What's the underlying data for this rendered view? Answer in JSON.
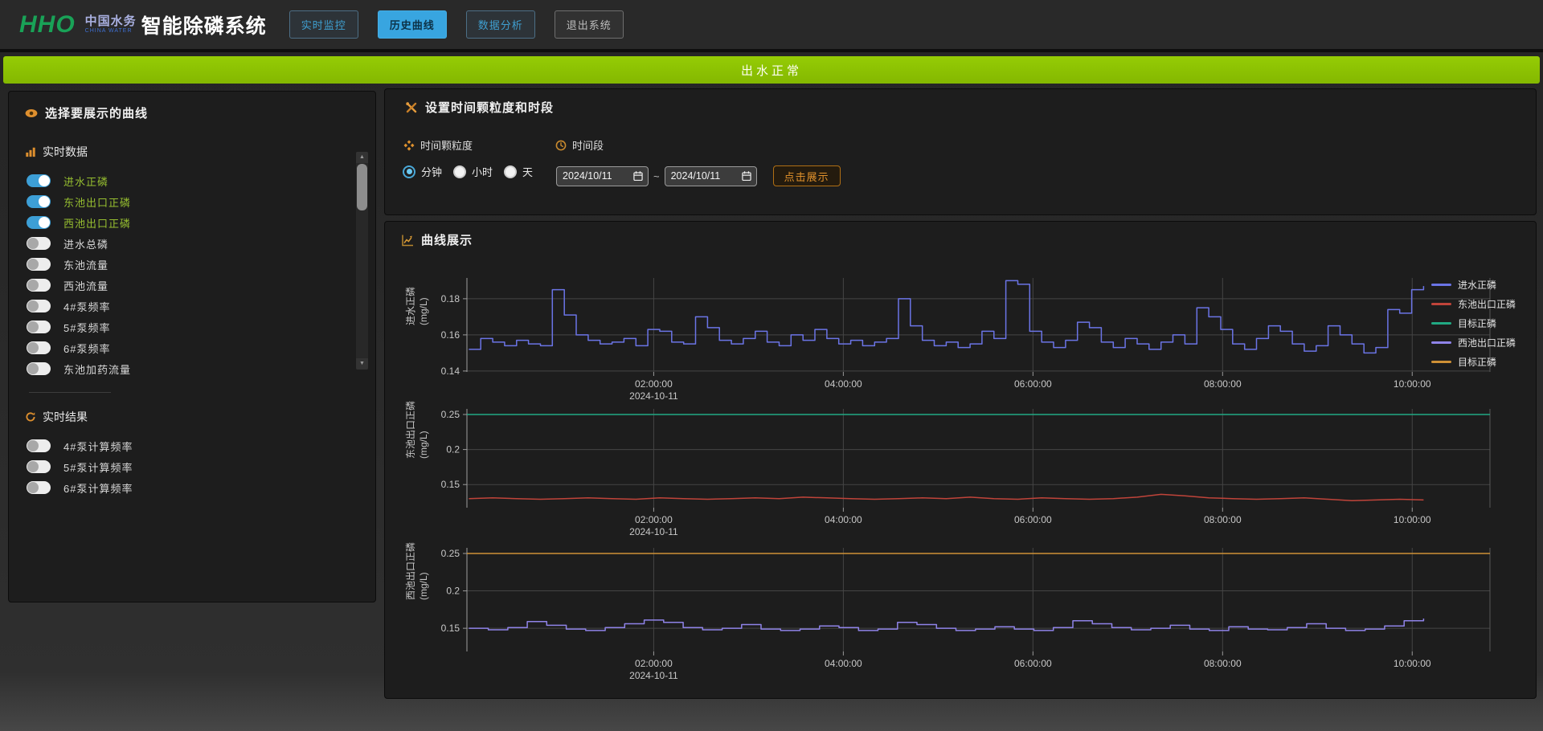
{
  "header": {
    "logo_mark": "HHO",
    "logo_cn": "中国水务",
    "logo_en": "CHINA WATER",
    "app_title": "智能除磷系统",
    "nav": [
      {
        "id": "realtime-monitor",
        "label": "实时监控",
        "style": "outline-blue"
      },
      {
        "id": "history-curves",
        "label": "历史曲线",
        "style": "active"
      },
      {
        "id": "data-analysis",
        "label": "数据分析",
        "style": "outline-blue"
      },
      {
        "id": "exit-system",
        "label": "退出系统",
        "style": "outline-gray"
      }
    ]
  },
  "banner": {
    "text": "出水正常",
    "color": "#8cc400"
  },
  "sidebar": {
    "title": "选择要展示的曲线",
    "groups": [
      {
        "title": "实时数据",
        "icon": "bar-chart-icon",
        "items": [
          {
            "label": "进水正磷",
            "on": true
          },
          {
            "label": "东池出口正磷",
            "on": true
          },
          {
            "label": "西池出口正磷",
            "on": true
          },
          {
            "label": "进水总磷",
            "on": false
          },
          {
            "label": "东池流量",
            "on": false
          },
          {
            "label": "西池流量",
            "on": false
          },
          {
            "label": "4#泵频率",
            "on": false
          },
          {
            "label": "5#泵频率",
            "on": false
          },
          {
            "label": "6#泵频率",
            "on": false
          },
          {
            "label": "东池加药流量",
            "on": false
          }
        ]
      },
      {
        "title": "实时结果",
        "icon": "refresh-icon",
        "items": [
          {
            "label": "4#泵计算频率",
            "on": false
          },
          {
            "label": "5#泵计算频率",
            "on": false
          },
          {
            "label": "6#泵计算频率",
            "on": false
          }
        ]
      }
    ]
  },
  "settings": {
    "title": "设置时间颗粒度和时段",
    "granularity": {
      "label": "时间颗粒度",
      "options": [
        {
          "label": "分钟",
          "selected": true
        },
        {
          "label": "小时",
          "selected": false
        },
        {
          "label": "天",
          "selected": false
        }
      ]
    },
    "period": {
      "label": "时间段",
      "start": "2024/10/11",
      "end": "2024/10/11",
      "separator": "~",
      "show_button": "点击展示"
    }
  },
  "charts_panel": {
    "title": "曲线展示",
    "legend": [
      {
        "label": "进水正磷",
        "color": "#6b74e6"
      },
      {
        "label": "东池出口正磷",
        "color": "#c0443a"
      },
      {
        "label": "目标正磷",
        "color": "#21a983"
      },
      {
        "label": "西池出口正磷",
        "color": "#8f83e8"
      },
      {
        "label": "目标正磷",
        "color": "#cf9136"
      }
    ]
  },
  "chart_data": [
    {
      "type": "line",
      "ylabel": "进水正磷",
      "yunit": "(mg/L)",
      "ylim": [
        0.1395,
        0.1915
      ],
      "yticks": [
        0.14,
        0.16,
        0.18
      ],
      "xlim_hours": [
        0.03,
        10.82
      ],
      "xticks": [
        {
          "hour": 2,
          "label": "02:00:00",
          "date": "2024-10-11"
        },
        {
          "hour": 4,
          "label": "04:00:00"
        },
        {
          "hour": 6,
          "label": "06:00:00"
        },
        {
          "hour": 8,
          "label": "08:00:00"
        },
        {
          "hour": 10,
          "label": "10:00:00"
        }
      ],
      "series": [
        {
          "name": "进水正磷",
          "color": "#6b74e6",
          "step": true,
          "x_start": 0.05,
          "x_end": 10.12,
          "values": [
            0.152,
            0.158,
            0.156,
            0.154,
            0.157,
            0.155,
            0.154,
            0.185,
            0.171,
            0.16,
            0.157,
            0.155,
            0.156,
            0.158,
            0.154,
            0.163,
            0.162,
            0.156,
            0.155,
            0.17,
            0.164,
            0.157,
            0.155,
            0.158,
            0.162,
            0.156,
            0.154,
            0.16,
            0.157,
            0.163,
            0.158,
            0.155,
            0.157,
            0.154,
            0.156,
            0.158,
            0.18,
            0.165,
            0.157,
            0.154,
            0.156,
            0.153,
            0.155,
            0.162,
            0.158,
            0.19,
            0.188,
            0.162,
            0.156,
            0.153,
            0.157,
            0.167,
            0.164,
            0.156,
            0.153,
            0.158,
            0.155,
            0.152,
            0.156,
            0.16,
            0.155,
            0.175,
            0.17,
            0.163,
            0.155,
            0.152,
            0.158,
            0.165,
            0.162,
            0.155,
            0.151,
            0.154,
            0.165,
            0.16,
            0.155,
            0.15,
            0.153,
            0.174,
            0.172,
            0.185,
            0.187
          ]
        }
      ]
    },
    {
      "type": "line",
      "ylabel": "东池出口正磷",
      "yunit": "(mg/L)",
      "ylim": [
        0.117,
        0.258
      ],
      "yticks": [
        0.15,
        0.2,
        0.25
      ],
      "xlim_hours": [
        0.03,
        10.82
      ],
      "xticks": [
        {
          "hour": 2,
          "label": "02:00:00",
          "date": "2024-10-11"
        },
        {
          "hour": 4,
          "label": "04:00:00"
        },
        {
          "hour": 6,
          "label": "06:00:00"
        },
        {
          "hour": 8,
          "label": "08:00:00"
        },
        {
          "hour": 10,
          "label": "10:00:00"
        }
      ],
      "series": [
        {
          "name": "目标正磷",
          "color": "#21a983",
          "step": false,
          "x_start": 0.03,
          "x_end": 10.82,
          "values": [
            0.25,
            0.25
          ]
        },
        {
          "name": "东池出口正磷",
          "color": "#c0443a",
          "step": false,
          "x_start": 0.05,
          "x_end": 10.12,
          "values": [
            0.13,
            0.131,
            0.13,
            0.129,
            0.13,
            0.131,
            0.13,
            0.129,
            0.131,
            0.13,
            0.129,
            0.13,
            0.131,
            0.13,
            0.132,
            0.131,
            0.13,
            0.129,
            0.13,
            0.131,
            0.13,
            0.132,
            0.13,
            0.129,
            0.131,
            0.13,
            0.129,
            0.13,
            0.132,
            0.136,
            0.134,
            0.131,
            0.13,
            0.129,
            0.13,
            0.131,
            0.129,
            0.127,
            0.128,
            0.129,
            0.128
          ]
        }
      ]
    },
    {
      "type": "line",
      "ylabel": "西池出口正磷",
      "yunit": "(mg/L)",
      "ylim": [
        0.119,
        0.2575
      ],
      "yticks": [
        0.15,
        0.2,
        0.25
      ],
      "xlim_hours": [
        0.03,
        10.82
      ],
      "xticks": [
        {
          "hour": 2,
          "label": "02:00:00",
          "date": "2024-10-11"
        },
        {
          "hour": 4,
          "label": "04:00:00"
        },
        {
          "hour": 6,
          "label": "06:00:00"
        },
        {
          "hour": 8,
          "label": "08:00:00"
        },
        {
          "hour": 10,
          "label": "10:00:00"
        }
      ],
      "series": [
        {
          "name": "目标正磷",
          "color": "#cf9136",
          "step": false,
          "x_start": 0.03,
          "x_end": 10.82,
          "values": [
            0.25,
            0.25
          ]
        },
        {
          "name": "西池出口正磷",
          "color": "#8f83e8",
          "step": true,
          "x_start": 0.05,
          "x_end": 10.12,
          "values": [
            0.15,
            0.148,
            0.151,
            0.159,
            0.154,
            0.149,
            0.147,
            0.151,
            0.156,
            0.161,
            0.158,
            0.151,
            0.148,
            0.15,
            0.155,
            0.149,
            0.147,
            0.149,
            0.153,
            0.151,
            0.147,
            0.149,
            0.158,
            0.155,
            0.15,
            0.147,
            0.149,
            0.152,
            0.149,
            0.147,
            0.151,
            0.16,
            0.156,
            0.151,
            0.148,
            0.15,
            0.154,
            0.149,
            0.147,
            0.152,
            0.149,
            0.148,
            0.151,
            0.156,
            0.15,
            0.147,
            0.149,
            0.153,
            0.16,
            0.163
          ]
        }
      ]
    }
  ]
}
